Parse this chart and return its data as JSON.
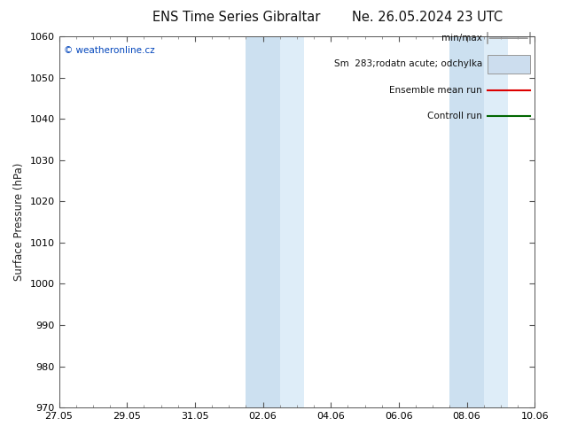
{
  "title_left": "ENS Time Series Gibraltar",
  "title_right": "Ne. 26.05.2024 23 UTC",
  "ylabel": "Surface Pressure (hPa)",
  "ylim": [
    970,
    1060
  ],
  "yticks": [
    970,
    980,
    990,
    1000,
    1010,
    1020,
    1030,
    1040,
    1050,
    1060
  ],
  "xlim": [
    0,
    14
  ],
  "xtick_labels": [
    "27.05",
    "29.05",
    "31.05",
    "02.06",
    "04.06",
    "06.06",
    "08.06",
    "10.06"
  ],
  "xtick_positions": [
    0,
    2,
    4,
    6,
    8,
    10,
    12,
    14
  ],
  "shaded_regions": [
    {
      "start": 5.5,
      "end": 6.5,
      "color": "#ddeeff"
    },
    {
      "start": 6.5,
      "end": 7.0,
      "color": "#eef5fc"
    },
    {
      "start": 11.5,
      "end": 12.5,
      "color": "#ddeeff"
    },
    {
      "start": 12.5,
      "end": 13.0,
      "color": "#eef5fc"
    }
  ],
  "watermark": "© weatheronline.cz",
  "legend_items": [
    {
      "label": "min/max",
      "color": "#999999",
      "style": "hline"
    },
    {
      "label": "Sm  283;rodatn acute; odchylka",
      "color": "#ccddee",
      "style": "box"
    },
    {
      "label": "Ensemble mean run",
      "color": "#dd0000",
      "style": "line"
    },
    {
      "label": "Controll run",
      "color": "#006600",
      "style": "line"
    }
  ],
  "background_color": "#ffffff",
  "plot_bg_color": "#ffffff",
  "title_fontsize": 10.5,
  "tick_fontsize": 8,
  "ylabel_fontsize": 8.5
}
